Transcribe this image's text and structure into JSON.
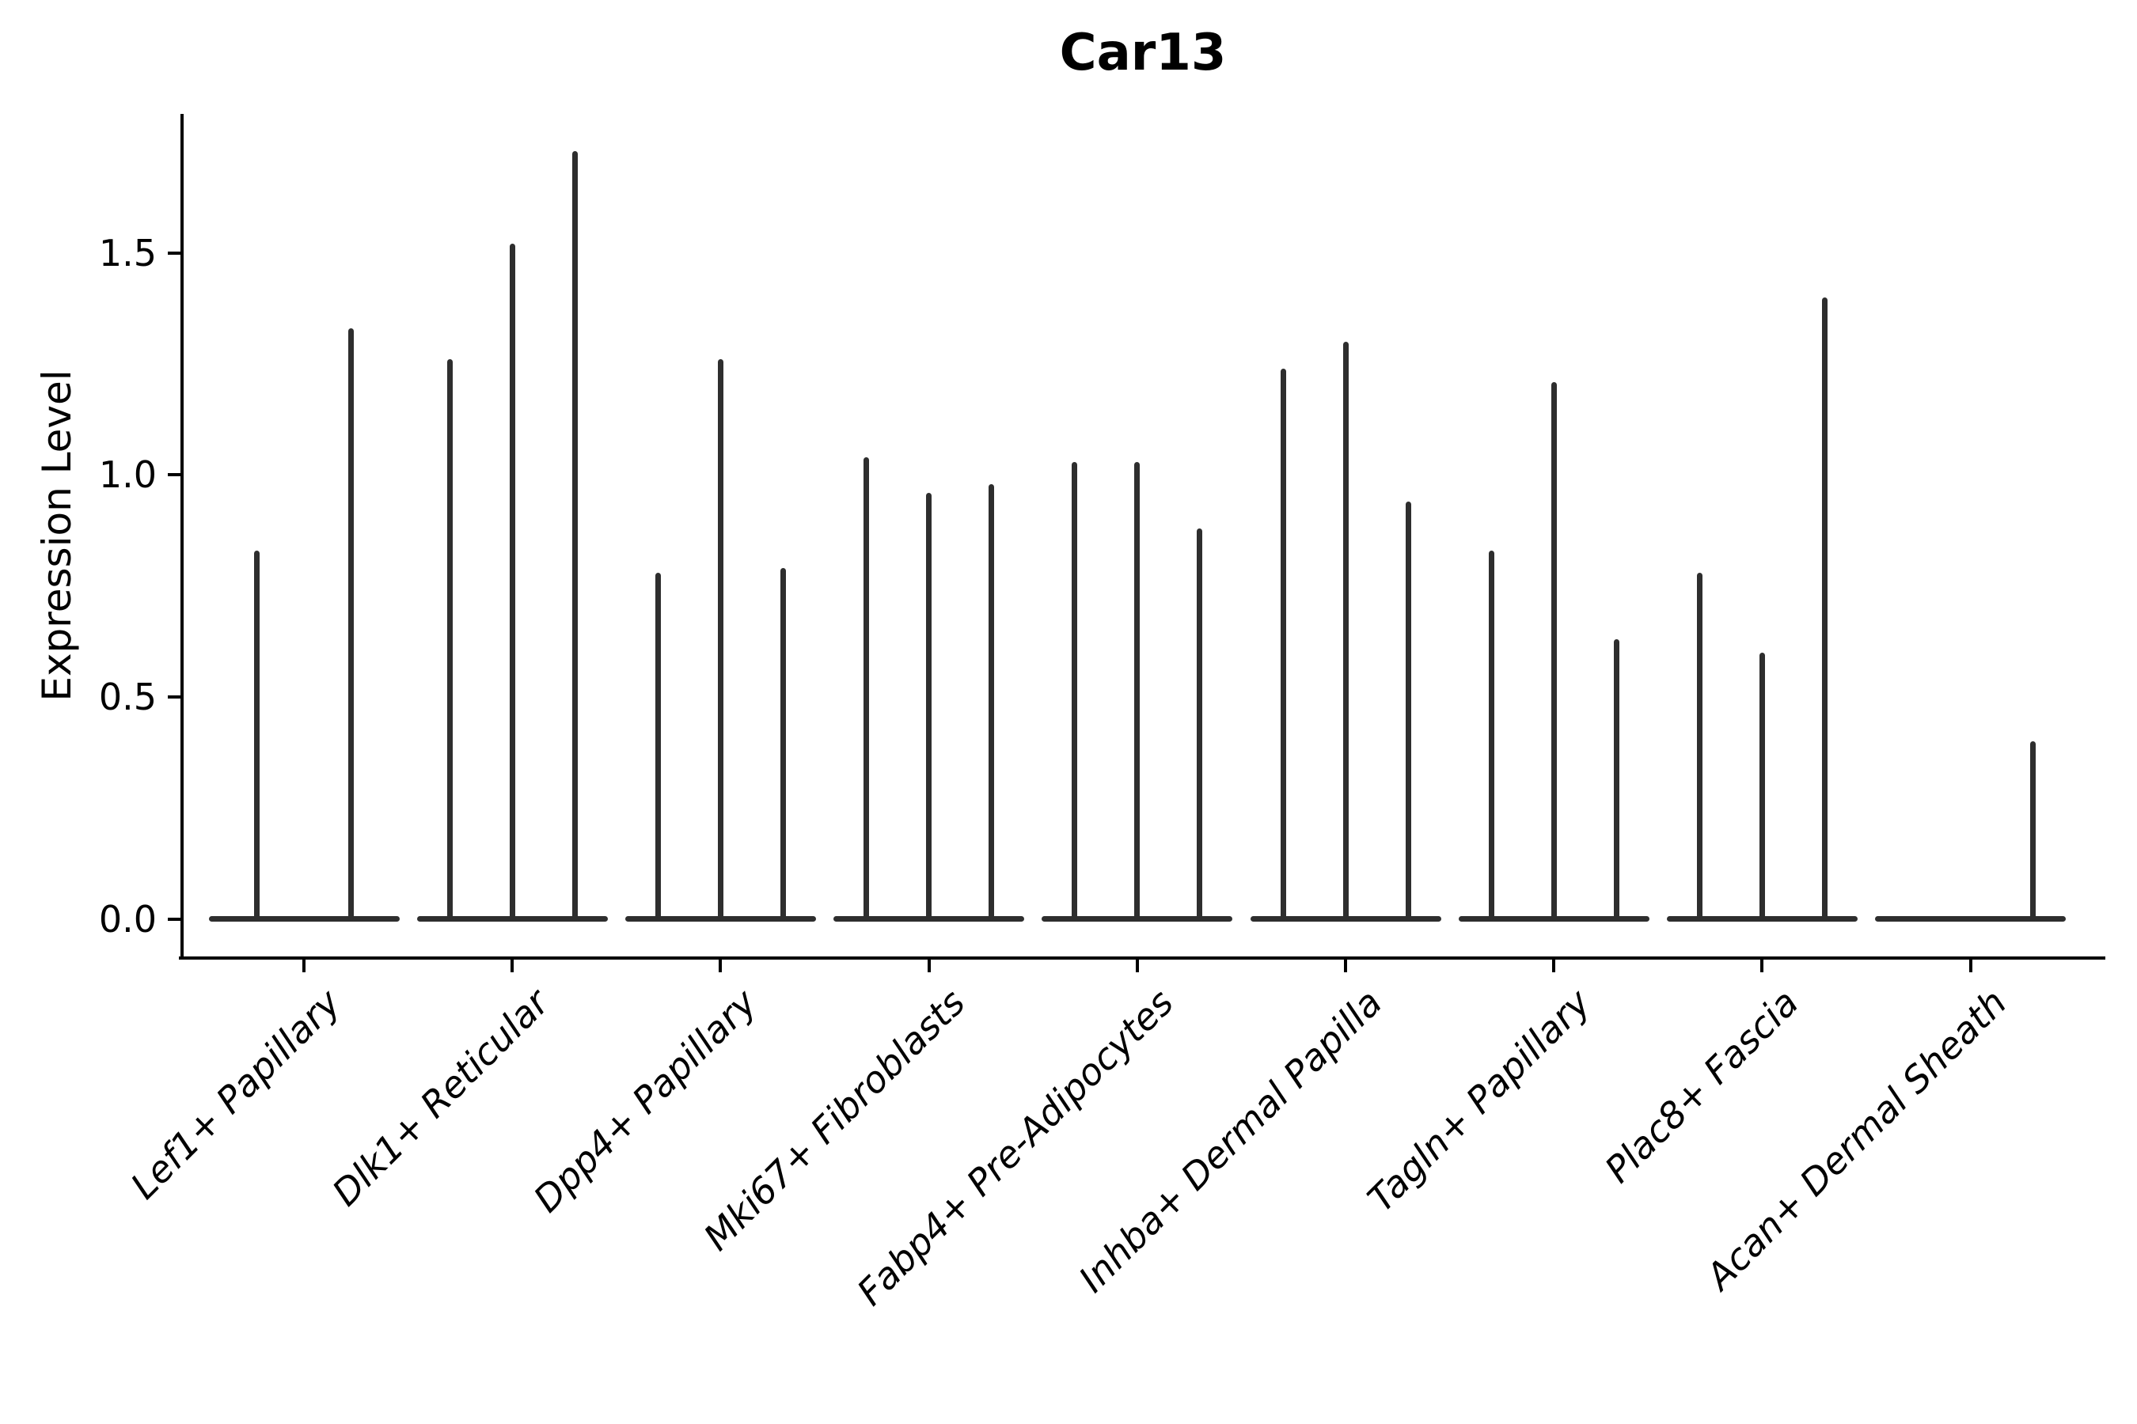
{
  "title": "Car13",
  "ylabel": "Expression Level",
  "chart_data": {
    "type": "violin",
    "title": "Car13",
    "xlabel": "",
    "ylabel": "Expression Level",
    "ylim": [
      -0.084,
      1.813
    ],
    "yticks": [
      0.0,
      0.5,
      1.0,
      1.5
    ],
    "ytick_labels": [
      "0.0",
      "0.5",
      "1.0",
      "1.5"
    ],
    "grid": false,
    "legend_position": "none",
    "violin_color": "#2e2e2e",
    "axis_color": "#000000",
    "categories": [
      "Lef1+ Papillary",
      "Dlk1+ Reticular",
      "Dpp4+ Papillary",
      "Mki67+ Fibroblasts",
      "Fabp4+ Pre-Adipocytes",
      "Inhba+ Dermal Papilla",
      "Tagln+ Papillary",
      "Plac8+ Fascia",
      "Acan+ Dermal Sheath"
    ],
    "groups": [
      {
        "category": "Lef1+ Papillary",
        "violin_peaks": [
          0.83,
          1.33
        ]
      },
      {
        "category": "Dlk1+ Reticular",
        "violin_peaks": [
          1.26,
          1.52,
          1.73
        ]
      },
      {
        "category": "Dpp4+ Papillary",
        "violin_peaks": [
          0.78,
          1.26,
          0.79
        ]
      },
      {
        "category": "Mki67+ Fibroblasts",
        "violin_peaks": [
          1.04,
          0.96,
          0.98
        ]
      },
      {
        "category": "Fabp4+ Pre-Adipocytes",
        "violin_peaks": [
          1.03,
          1.03,
          0.88
        ]
      },
      {
        "category": "Inhba+ Dermal Papilla",
        "violin_peaks": [
          1.24,
          1.3,
          0.94
        ]
      },
      {
        "category": "Tagln+ Papillary",
        "violin_peaks": [
          0.83,
          1.21,
          0.63
        ]
      },
      {
        "category": "Plac8+ Fascia",
        "violin_peaks": [
          0.78,
          0.6,
          1.4
        ]
      },
      {
        "category": "Acan+ Dermal Sheath",
        "violin_peaks": [
          0.0,
          0.0,
          0.4
        ]
      }
    ],
    "note": "violin_peaks are the maximum Expression Level reached by each thin violin (left to right) within a group; 0.0 means a flat violin collapsed on the baseline"
  }
}
